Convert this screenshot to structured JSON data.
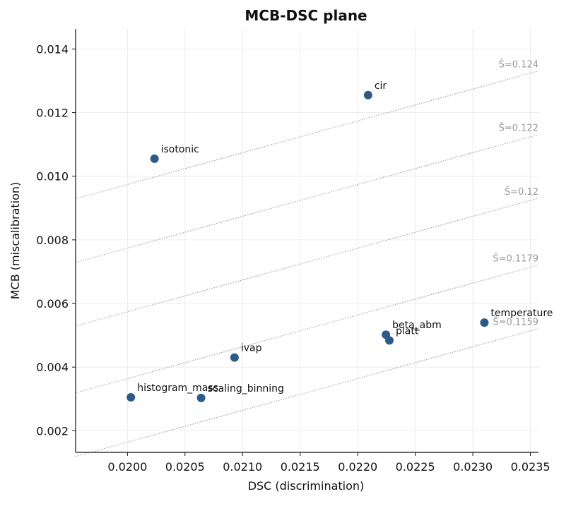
{
  "chart_data": {
    "type": "scatter",
    "title": "MCB-DSC plane",
    "xlabel": "DSC (discrimination)",
    "ylabel": "MCB (miscalibration)",
    "xlim": [
      0.01955,
      0.02357
    ],
    "ylim": [
      0.00132,
      0.01463
    ],
    "grid": true,
    "x_ticks": [
      "0.0200",
      "0.0205",
      "0.0210",
      "0.0215",
      "0.0220",
      "0.0225",
      "0.0230",
      "0.0235"
    ],
    "y_ticks": [
      "0.002",
      "0.004",
      "0.006",
      "0.008",
      "0.010",
      "0.012",
      "0.014"
    ],
    "point_color": "#2e5a87",
    "points": [
      {
        "label": "cir",
        "x": 0.02209,
        "y": 0.01255
      },
      {
        "label": "isotonic",
        "x": 0.020235,
        "y": 0.01055
      },
      {
        "label": "temperature",
        "x": 0.0231,
        "y": 0.0054
      },
      {
        "label": "beta_abm",
        "x": 0.022245,
        "y": 0.00502
      },
      {
        "label": "platt",
        "x": 0.022275,
        "y": 0.00484
      },
      {
        "label": "ivap",
        "x": 0.02093,
        "y": 0.0043
      },
      {
        "label": "histogram_mass",
        "x": 0.02003,
        "y": 0.00305
      },
      {
        "label": "scaling_binning",
        "x": 0.02064,
        "y": 0.00303
      }
    ],
    "iso_lines": [
      {
        "label": "S̄=0.124",
        "offset": 0.124
      },
      {
        "label": "S̄=0.122",
        "offset": 0.122
      },
      {
        "label": "S̄=0.12",
        "offset": 0.12
      },
      {
        "label": "S̄=0.1179",
        "offset": 0.1179
      },
      {
        "label": "S̄=0.1159",
        "offset": 0.1159
      }
    ],
    "iso_line_color": "#999999"
  }
}
